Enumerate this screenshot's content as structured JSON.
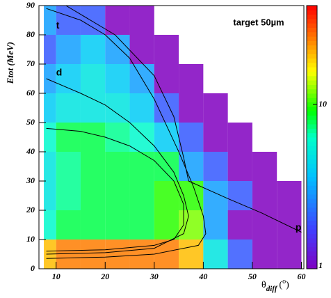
{
  "chart_data": {
    "type": "heatmap",
    "title": "target 50µm",
    "y_label": "Etot (MeV)",
    "x_label_parts": [
      "θ",
      "diff",
      "(",
      "o",
      ")"
    ],
    "xlim": [
      6.5,
      60.5
    ],
    "ylim": [
      0,
      90
    ],
    "xticks": [
      10,
      20,
      30,
      40,
      50,
      60
    ],
    "yticks": [
      0,
      10,
      20,
      30,
      40,
      50,
      60,
      70,
      80,
      90
    ],
    "x_edges": [
      7.5,
      10,
      15,
      20,
      25,
      30,
      35,
      40,
      45,
      50,
      55,
      60
    ],
    "y_edges": [
      0,
      10,
      20,
      30,
      40,
      50,
      60,
      70,
      80,
      90
    ],
    "z": [
      [
        20,
        25,
        25,
        25,
        25,
        25,
        20,
        5,
        2,
        1,
        1
      ],
      [
        6,
        8,
        8,
        8,
        8,
        10,
        12,
        3,
        1,
        1,
        1
      ],
      [
        5,
        7,
        8,
        8,
        8,
        10,
        10,
        3,
        2,
        1,
        1
      ],
      [
        5,
        7,
        8,
        8,
        8,
        8,
        3,
        2,
        1,
        1,
        null
      ],
      [
        6,
        8,
        8,
        7,
        6,
        4,
        2,
        1,
        1,
        null,
        null
      ],
      [
        4,
        5,
        5,
        5,
        4,
        2,
        1,
        1,
        null,
        null,
        null
      ],
      [
        3,
        4,
        5,
        4,
        3,
        1,
        1,
        null,
        null,
        null,
        null
      ],
      [
        2,
        3,
        4,
        3,
        1,
        1,
        null,
        null,
        null,
        null,
        null
      ],
      [
        3,
        2,
        2,
        1,
        1,
        null,
        null,
        null,
        null,
        null,
        null
      ]
    ],
    "zlim": [
      1,
      40
    ],
    "zlog": true,
    "zticks": [
      1,
      10
    ],
    "curves": [
      {
        "color": "#000000",
        "x": [
          8,
          15,
          20,
          25,
          30,
          35,
          38,
          40,
          40.5,
          39,
          30,
          20,
          8
        ],
        "y": [
          89,
          85,
          80,
          72,
          58,
          40,
          28,
          18,
          12,
          8,
          5,
          4,
          3.5
        ]
      },
      {
        "color": "#000000",
        "x": [
          8,
          15,
          20,
          25,
          30,
          34,
          36,
          37,
          36,
          30,
          20,
          8
        ],
        "y": [
          65,
          60,
          56,
          50,
          42,
          33,
          25,
          18,
          12,
          7,
          5.5,
          5
        ]
      },
      {
        "color": "#000000",
        "x": [
          8,
          15,
          20,
          25,
          30,
          34,
          36,
          36,
          34,
          30,
          20,
          8
        ],
        "y": [
          48,
          47,
          45,
          42,
          37,
          30,
          22,
          15,
          10,
          8,
          6.5,
          6
        ]
      },
      {
        "color": "#000000",
        "x": [
          12,
          22,
          30,
          34,
          36,
          37,
          45,
          52,
          60
        ],
        "y": [
          90,
          80,
          66,
          52,
          38,
          30,
          24,
          19,
          12.5
        ]
      }
    ],
    "annotations": [
      "t",
      "d",
      "p"
    ]
  }
}
